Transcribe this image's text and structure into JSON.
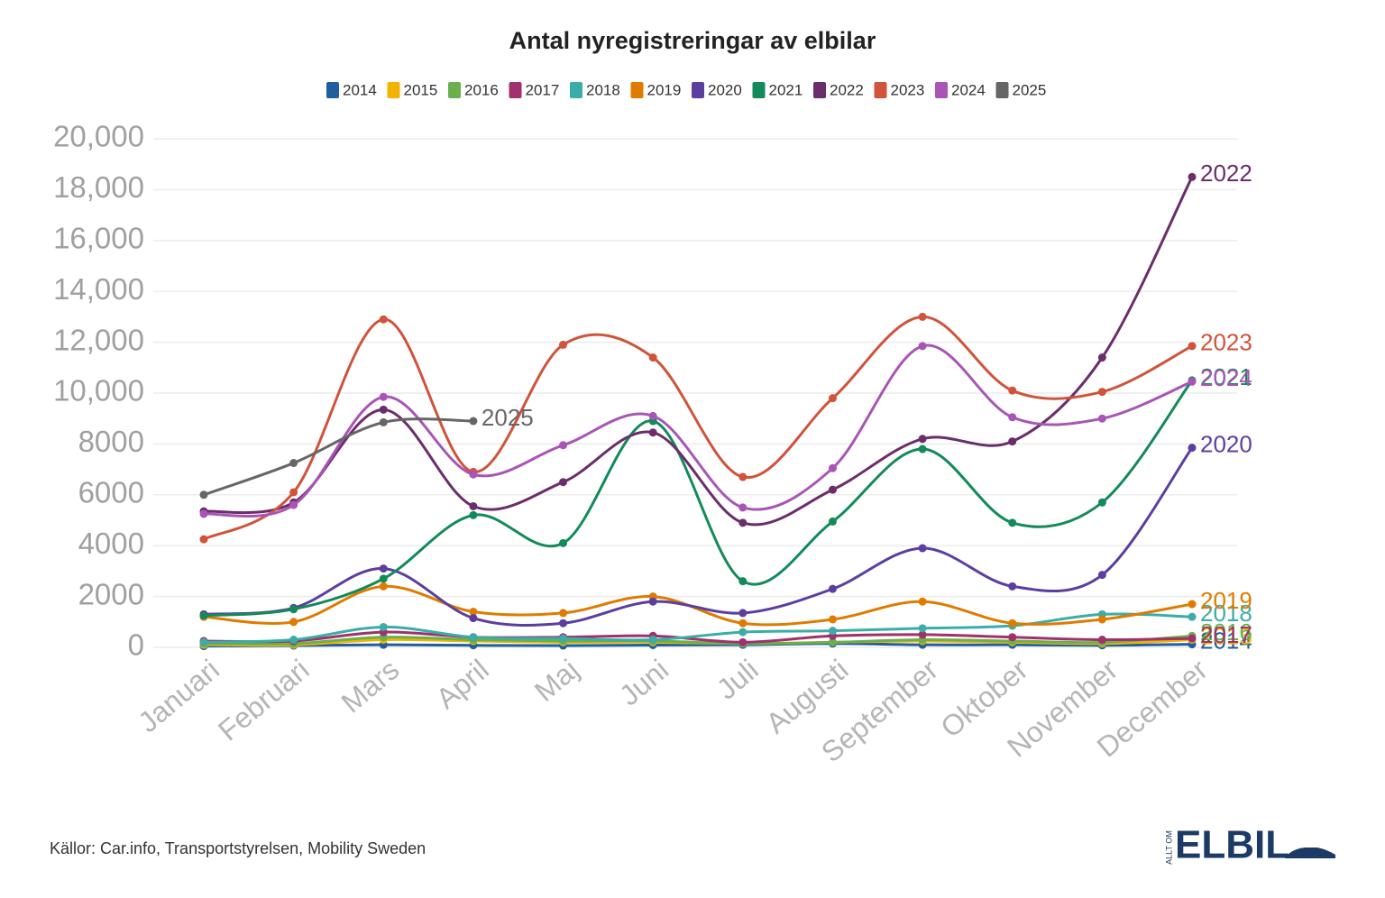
{
  "chart_data": {
    "type": "line",
    "title": "Antal nyregistreringar av elbilar",
    "categories": [
      "Januari",
      "Februari",
      "Mars",
      "April",
      "Maj",
      "Juni",
      "Juli",
      "Augusti",
      "September",
      "Oktober",
      "November",
      "December"
    ],
    "series": [
      {
        "name": "2014",
        "color": "#1f5f9e",
        "values": [
          50,
          70,
          100,
          80,
          70,
          90,
          100,
          150,
          100,
          100,
          80,
          120
        ]
      },
      {
        "name": "2015",
        "color": "#f0b400",
        "values": [
          100,
          100,
          300,
          250,
          200,
          200,
          150,
          200,
          250,
          200,
          150,
          300
        ]
      },
      {
        "name": "2016",
        "color": "#6ab04c",
        "values": [
          150,
          150,
          400,
          300,
          250,
          250,
          150,
          200,
          300,
          250,
          200,
          450
        ]
      },
      {
        "name": "2017",
        "color": "#a0306e",
        "values": [
          250,
          250,
          600,
          400,
          400,
          450,
          200,
          450,
          500,
          400,
          300,
          350
        ]
      },
      {
        "name": "2018",
        "color": "#3aada8",
        "values": [
          200,
          300,
          800,
          400,
          350,
          300,
          600,
          650,
          750,
          850,
          1300,
          1200
        ]
      },
      {
        "name": "2019",
        "color": "#e07b00",
        "values": [
          1200,
          1000,
          2400,
          1400,
          1350,
          2000,
          950,
          1100,
          1800,
          950,
          1100,
          1700
        ]
      },
      {
        "name": "2020",
        "color": "#5b3fa0",
        "values": [
          1300,
          1550,
          3100,
          1150,
          950,
          1800,
          1350,
          2300,
          3900,
          2400,
          2850,
          7850
        ]
      },
      {
        "name": "2021",
        "color": "#138a5a",
        "values": [
          1250,
          1500,
          2700,
          5200,
          4100,
          8900,
          2600,
          4950,
          7800,
          4900,
          5700,
          10500
        ]
      },
      {
        "name": "2022",
        "color": "#6b2d6b",
        "values": [
          5350,
          5700,
          9350,
          5550,
          6500,
          8450,
          4900,
          6200,
          8200,
          8100,
          11400,
          18500
        ]
      },
      {
        "name": "2023",
        "color": "#d0533a",
        "values": [
          4250,
          6100,
          12900,
          6900,
          11900,
          11400,
          6700,
          9800,
          13000,
          10100,
          10050,
          11850
        ]
      },
      {
        "name": "2024",
        "color": "#a855b5",
        "values": [
          5250,
          5600,
          9850,
          6800,
          7950,
          9100,
          5500,
          7050,
          11850,
          9050,
          9000,
          10450
        ]
      },
      {
        "name": "2025",
        "color": "#666666",
        "values": [
          6000,
          7250,
          8850,
          8900,
          null,
          null,
          null,
          null,
          null,
          null,
          null,
          null
        ]
      }
    ],
    "ylim": [
      0,
      20000
    ],
    "yticks": [
      0,
      2000,
      4000,
      6000,
      8000,
      {
        "value": 10000,
        "label": "10,000"
      },
      {
        "value": 12000,
        "label": "12,000"
      },
      {
        "value": 14000,
        "label": "14,000"
      },
      {
        "value": 16000,
        "label": "16,000"
      },
      {
        "value": 18000,
        "label": "18,000"
      },
      {
        "value": 20000,
        "label": "20,000"
      }
    ],
    "grid": true,
    "legend": "top",
    "source": "Källor: Car.info, Transportstyrelsen, Mobility Sweden",
    "logo": {
      "text": "ELBIL",
      "tag": "ALLT OM"
    }
  }
}
